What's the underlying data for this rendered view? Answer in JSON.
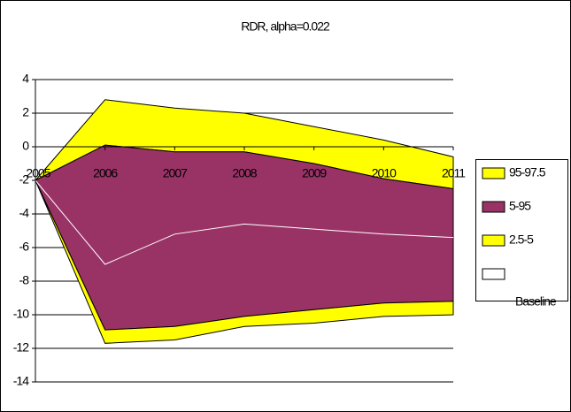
{
  "chart_data": {
    "type": "fan",
    "title": "RDR, alpha=0.022",
    "categories": [
      "2005",
      "2006",
      "2007",
      "2008",
      "2009",
      "2010",
      "2011"
    ],
    "ylim": [
      -14,
      4
    ],
    "yticks": [
      -14,
      -12,
      -10,
      -8,
      -6,
      -4,
      -2,
      0,
      2,
      4
    ],
    "grid": true,
    "legend": "right",
    "bands": [
      {
        "name": "95-97.5",
        "color": "#ffff00",
        "low": [
          -2,
          0.1,
          -0.3,
          -0.3,
          -1.0,
          -1.9,
          -2.5
        ],
        "high": [
          -2,
          2.8,
          2.3,
          2.0,
          1.2,
          0.4,
          -0.6
        ]
      },
      {
        "name": "5-95",
        "color": "#993366",
        "low": [
          -2,
          -10.9,
          -10.7,
          -10.1,
          -9.7,
          -9.3,
          -9.2
        ],
        "high": [
          -2,
          0.1,
          -0.3,
          -0.3,
          -1.0,
          -1.9,
          -2.5
        ]
      },
      {
        "name": "2.5-5",
        "color": "#ffff00",
        "low": [
          -2,
          -11.7,
          -11.5,
          -10.7,
          -10.5,
          -10.1,
          -10.0
        ],
        "high": [
          -2,
          -10.9,
          -10.7,
          -10.1,
          -9.7,
          -9.3,
          -9.2
        ]
      }
    ],
    "baseline": {
      "name": "Baseline",
      "color": "#ffffff",
      "values": [
        -2,
        -7.0,
        -5.2,
        -4.6,
        -4.9,
        -5.2,
        -5.4
      ]
    }
  }
}
